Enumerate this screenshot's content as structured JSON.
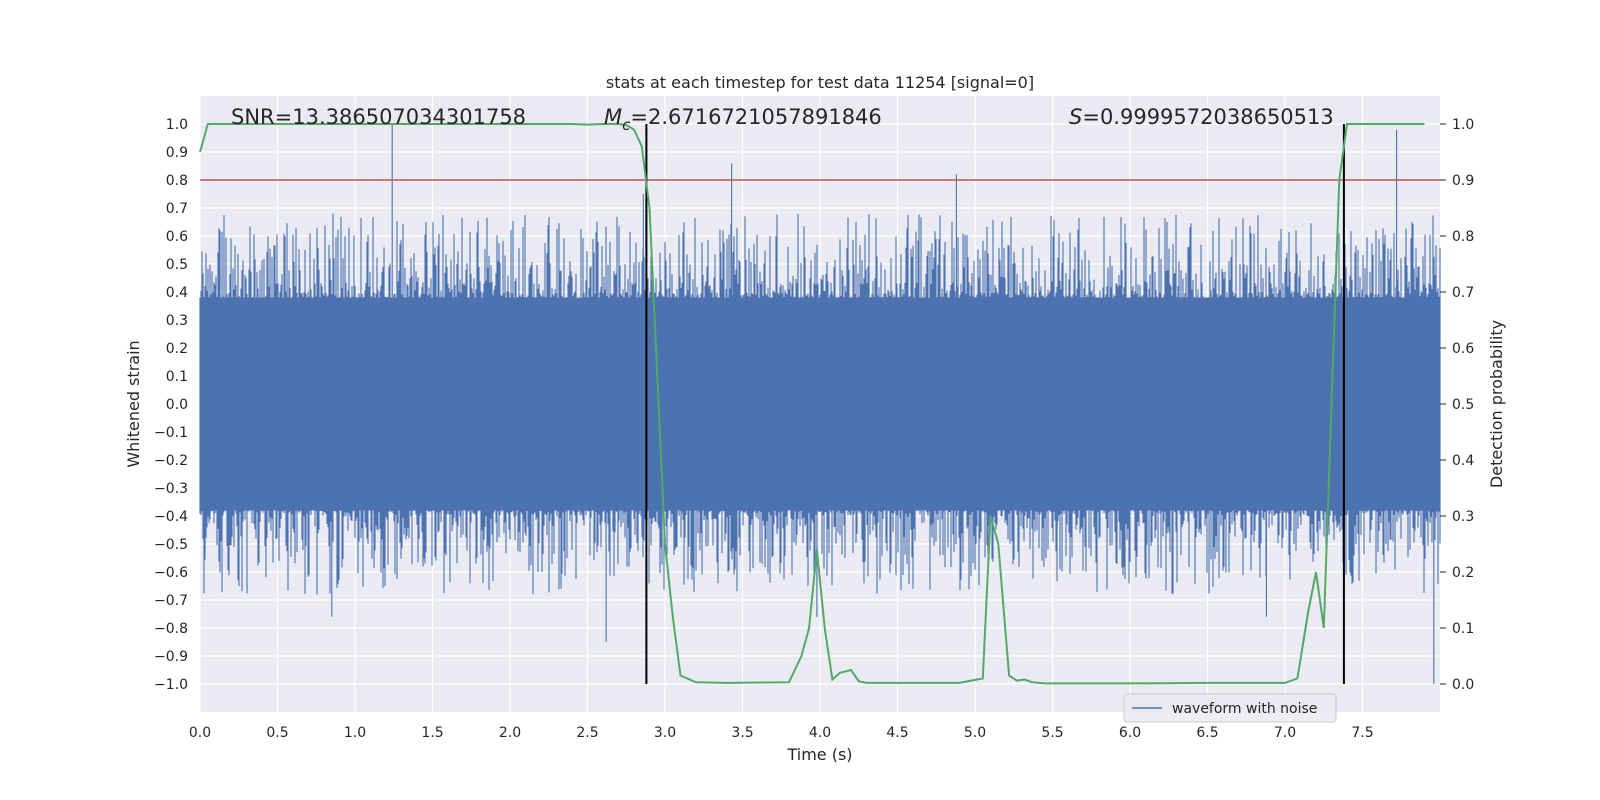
{
  "chart_data": {
    "type": "line",
    "title": "stats at each timestep for test data 11254 [signal=0]",
    "xlabel": "Time (s)",
    "ylabel": "Whitened strain",
    "y2label": "Detection probability",
    "xlim": [
      0.0,
      8.0
    ],
    "ylim": [
      -1.1,
      1.1
    ],
    "y2lim": [
      -0.05,
      1.05
    ],
    "x_ticks": [
      "0.0",
      "0.5",
      "1.0",
      "1.5",
      "2.0",
      "2.5",
      "3.0",
      "3.5",
      "4.0",
      "4.5",
      "5.0",
      "5.5",
      "6.0",
      "6.5",
      "7.0",
      "7.5"
    ],
    "y_ticks": [
      "1.0",
      "0.9",
      "0.8",
      "0.7",
      "0.6",
      "0.5",
      "0.4",
      "0.3",
      "0.2",
      "0.1",
      "0.0",
      "−0.1",
      "−0.2",
      "−0.3",
      "−0.4",
      "−0.5",
      "−0.6",
      "−0.7",
      "−0.8",
      "−0.9",
      "−1.0"
    ],
    "y2_ticks": [
      "1.0",
      "0.9",
      "0.8",
      "0.7",
      "0.6",
      "0.5",
      "0.4",
      "0.3",
      "0.2",
      "0.1",
      "0.0"
    ],
    "series": [
      {
        "name": "waveform with noise",
        "axis": "left",
        "color": "#4c72b0",
        "kind": "noisy waveform",
        "band": 0.38,
        "peaks": [
          [
            1.24,
            1.0
          ],
          [
            3.43,
            0.86
          ],
          [
            4.88,
            0.82
          ],
          [
            7.72,
            0.98
          ],
          [
            2.86,
            0.75
          ],
          [
            2.62,
            -0.85
          ],
          [
            3.98,
            -0.76
          ],
          [
            7.96,
            -1.0
          ],
          [
            0.85,
            -0.76
          ],
          [
            6.88,
            -0.76
          ]
        ]
      },
      {
        "name": "detection probability",
        "axis": "right",
        "color": "#55a868",
        "x": [
          0.0,
          0.05,
          0.1,
          0.5,
          1.0,
          1.5,
          2.0,
          2.4,
          2.5,
          2.6,
          2.7,
          2.75,
          2.8,
          2.85,
          2.9,
          2.95,
          3.0,
          3.05,
          3.1,
          3.2,
          3.4,
          3.8,
          3.88,
          3.93,
          3.98,
          4.03,
          4.08,
          4.13,
          4.2,
          4.25,
          4.3,
          4.4,
          4.6,
          4.9,
          5.05,
          5.1,
          5.15,
          5.22,
          5.27,
          5.32,
          5.37,
          5.45,
          5.6,
          6.0,
          6.5,
          7.0,
          7.08,
          7.15,
          7.2,
          7.25,
          7.3,
          7.35,
          7.4,
          7.45,
          7.5,
          7.6,
          7.9
        ],
        "y": [
          0.95,
          1.0,
          1.0,
          1.0,
          1.0,
          1.0,
          1.0,
          1.0,
          0.999,
          1.0,
          1.0,
          0.998,
          0.99,
          0.96,
          0.85,
          0.55,
          0.25,
          0.12,
          0.015,
          0.003,
          0.002,
          0.003,
          0.05,
          0.1,
          0.24,
          0.1,
          0.008,
          0.02,
          0.025,
          0.005,
          0.002,
          0.002,
          0.002,
          0.002,
          0.01,
          0.3,
          0.25,
          0.015,
          0.006,
          0.008,
          0.003,
          0.001,
          0.001,
          0.001,
          0.002,
          0.002,
          0.01,
          0.13,
          0.2,
          0.1,
          0.5,
          0.9,
          1.0,
          1.0,
          1.0,
          1.0,
          1.0
        ]
      }
    ],
    "threshold_line": {
      "y": 0.8,
      "color": "#c44e52"
    },
    "vlines": [
      2.88,
      7.38
    ],
    "annotations": {
      "snr": "SNR=13.386507034301758",
      "mc_symbol": "M",
      "mc_sub": "c",
      "mc_value": "=2.6716721057891846",
      "s_symbol": "S",
      "s_value": "=0.9999572038650513"
    },
    "legend": {
      "label": "waveform with noise",
      "position": "lower-right"
    },
    "grid": true
  }
}
